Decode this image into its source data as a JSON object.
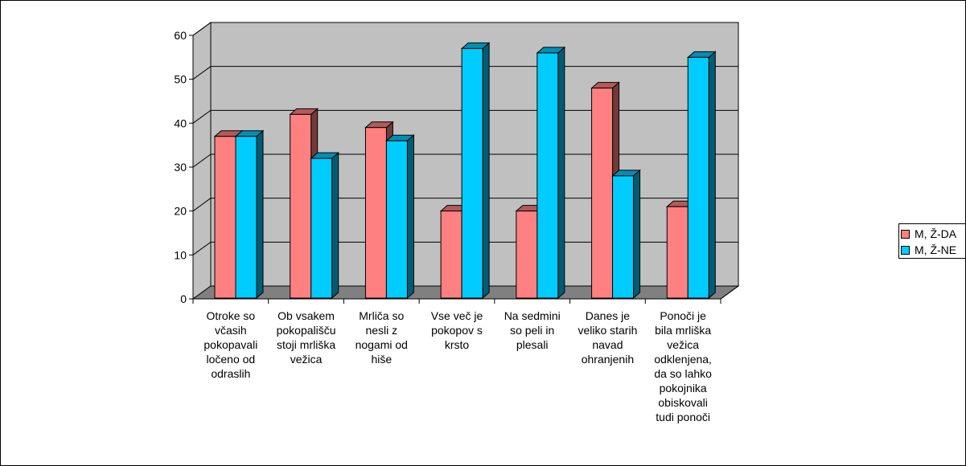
{
  "chart_data": {
    "type": "bar",
    "categories": [
      "Otroke so\nvčasih\npokopavali\nločeno od\nodraslih",
      "Ob vsakem\npokopališču\nstoji mrliška\nvežica",
      "Mrliča so\nnesli z\nnogami od\nhiše",
      "Vse več je\npokopov s\nkrsto",
      "Na sedmini\nso peli in\nplesali",
      "Danes je\nveliko starih\nnavad\nohranjenih",
      "Ponoči je\nbila mrliška\nvežica\nodklenjena,\nda so lahko\npokojnika\nobiskovali\ntudi ponoči"
    ],
    "series": [
      {
        "name": "M, Ž-DA",
        "values": [
          37,
          42,
          39,
          20,
          20,
          48,
          21
        ],
        "color": "#FF8080"
      },
      {
        "name": "M, Ž-NE",
        "values": [
          37,
          32,
          36,
          57,
          56,
          28,
          55
        ],
        "color": "#00CCFF"
      }
    ],
    "ylim": [
      0,
      60
    ],
    "yticks": [
      "0",
      "10",
      "20",
      "30",
      "40",
      "50",
      "60"
    ],
    "grid": true,
    "legend": "right",
    "wall_color": "#C0C0C0",
    "floor_color": "#808080"
  }
}
